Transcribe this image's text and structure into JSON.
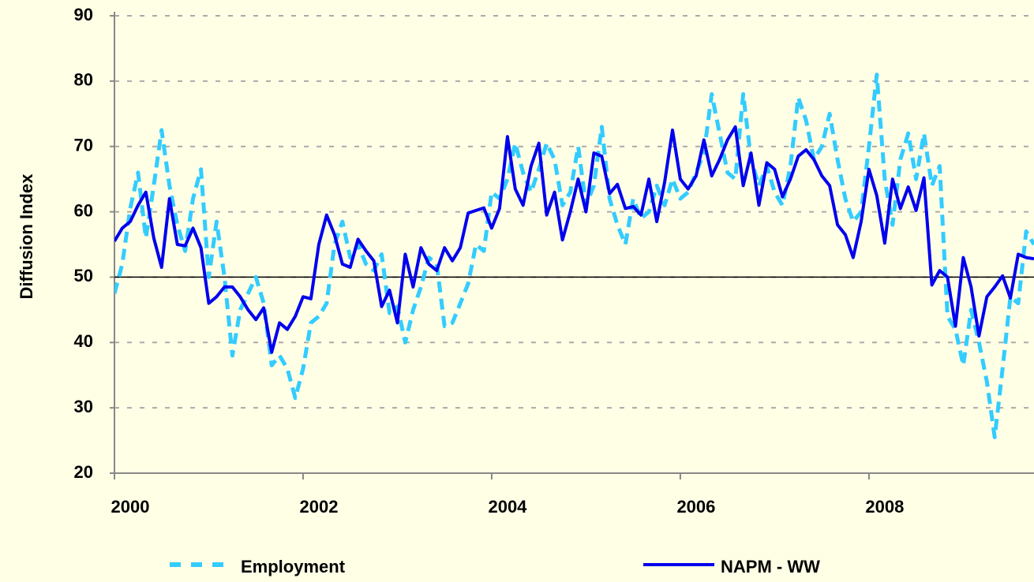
{
  "chart_data": {
    "type": "line",
    "y_label": "Diffusion Index",
    "x": [
      2000,
      2000.083,
      2000.167,
      2000.25,
      2000.333,
      2000.417,
      2000.5,
      2000.583,
      2000.667,
      2000.75,
      2000.833,
      2000.917,
      2001,
      2001.083,
      2001.167,
      2001.25,
      2001.333,
      2001.417,
      2001.5,
      2001.583,
      2001.667,
      2001.75,
      2001.833,
      2001.917,
      2002,
      2002.083,
      2002.167,
      2002.25,
      2002.333,
      2002.417,
      2002.5,
      2002.583,
      2002.667,
      2002.75,
      2002.833,
      2002.917,
      2003,
      2003.083,
      2003.167,
      2003.25,
      2003.333,
      2003.417,
      2003.5,
      2003.583,
      2003.667,
      2003.75,
      2003.833,
      2003.917,
      2004,
      2004.083,
      2004.167,
      2004.25,
      2004.333,
      2004.417,
      2004.5,
      2004.583,
      2004.667,
      2004.75,
      2004.833,
      2004.917,
      2005,
      2005.083,
      2005.167,
      2005.25,
      2005.333,
      2005.417,
      2005.5,
      2005.583,
      2005.667,
      2005.75,
      2005.833,
      2005.917,
      2006,
      2006.083,
      2006.167,
      2006.25,
      2006.333,
      2006.417,
      2006.5,
      2006.583,
      2006.667,
      2006.75,
      2006.833,
      2006.917,
      2007,
      2007.083,
      2007.167,
      2007.25,
      2007.333,
      2007.417,
      2007.5,
      2007.583,
      2007.667,
      2007.75,
      2007.833,
      2007.917,
      2008,
      2008.083,
      2008.167,
      2008.25,
      2008.333,
      2008.417,
      2008.5,
      2008.583,
      2008.667,
      2008.75,
      2008.833,
      2008.917,
      2009,
      2009.083,
      2009.167,
      2009.25,
      2009.333,
      2009.417,
      2009.5,
      2009.583,
      2009.667,
      2009.75
    ],
    "series": [
      {
        "name": "Employment",
        "color": "#33ccff",
        "dash": true,
        "values": [
          47.5,
          52,
          60.5,
          66,
          56,
          64,
          72.5,
          64,
          58,
          54,
          62,
          66.5,
          50,
          58.5,
          50,
          38,
          45,
          47.5,
          50,
          46,
          36.5,
          38,
          36,
          31.5,
          36,
          43,
          44,
          46,
          55,
          58.5,
          53,
          55,
          52,
          51,
          53.5,
          44.5,
          45.5,
          40,
          45,
          48.5,
          53,
          52,
          42.5,
          43,
          46,
          49,
          55,
          54,
          63,
          62,
          65,
          70.5,
          66,
          63,
          66.5,
          70.5,
          68,
          61,
          63,
          70,
          61,
          64,
          73,
          62,
          58,
          55,
          62,
          59,
          60,
          64,
          61,
          65,
          62,
          63,
          66,
          69,
          78,
          72,
          66,
          65,
          78,
          68,
          64,
          67,
          63,
          61,
          67,
          77.5,
          74,
          68,
          70,
          75,
          68,
          62,
          58.5,
          60,
          70,
          81,
          65,
          58,
          68,
          72,
          65,
          72,
          64,
          67,
          44,
          42,
          36.5,
          45,
          40,
          34,
          25.5,
          36,
          47,
          46,
          57,
          55
        ]
      },
      {
        "name": "NAPM - WW",
        "color": "#0000ee",
        "dash": false,
        "values": [
          55.5,
          57.5,
          58.5,
          61,
          63,
          56,
          51.5,
          62,
          55,
          54.8,
          57.5,
          54.5,
          46,
          47,
          48.5,
          48.5,
          47,
          45,
          43.5,
          45.3,
          38.5,
          43,
          42,
          44,
          47,
          46.7,
          55,
          59.5,
          56.5,
          52,
          51.5,
          55.8,
          54,
          52.5,
          45.5,
          48,
          43,
          53.5,
          48.5,
          54.5,
          52,
          51,
          54.5,
          52.5,
          54.5,
          59.8,
          60.2,
          60.6,
          57.5,
          60.5,
          71.5,
          63.5,
          61,
          67,
          70.5,
          59.5,
          63,
          55.7,
          60,
          65,
          60,
          69,
          68.5,
          62.8,
          64.2,
          60.5,
          60.8,
          59.5,
          65,
          58.5,
          64.5,
          72.5,
          65,
          63.5,
          65.5,
          71,
          65.5,
          68,
          71,
          73,
          64,
          69,
          61,
          67.5,
          66.5,
          62.3,
          65,
          68.5,
          69.5,
          68,
          65.5,
          64,
          58,
          56.5,
          53,
          58.5,
          66.5,
          62.5,
          55.2,
          65,
          60.5,
          63.8,
          60.2,
          65.2,
          48.8,
          51,
          50,
          42.5,
          53,
          48.5,
          41,
          47,
          48.5,
          50.2,
          46.8,
          53.5,
          53,
          52.8
        ]
      }
    ],
    "reference_line": 50,
    "xlim": [
      2000,
      2009.75
    ],
    "xticks": [
      2000,
      2002,
      2004,
      2006,
      2008
    ],
    "ylim": [
      20,
      90
    ],
    "yticks": [
      20,
      30,
      40,
      50,
      60,
      70,
      80,
      90
    ],
    "grid": true,
    "legend": "bottom"
  }
}
